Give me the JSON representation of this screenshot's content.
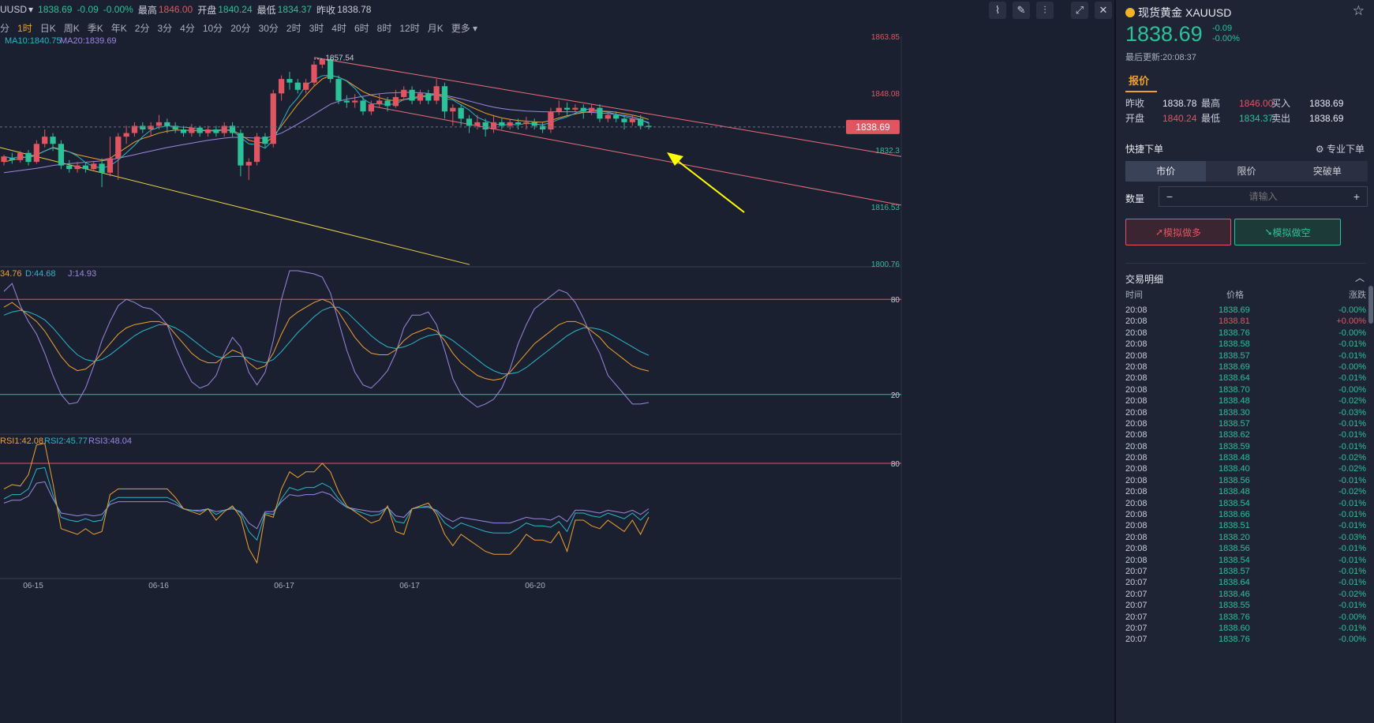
{
  "header": {
    "symbol": "UUSD",
    "price": "1838.69",
    "change": "-0.09",
    "change_pct": "-0.00%",
    "high_label": "最高",
    "high": "1846.00",
    "open_label": "开盘",
    "open": "1840.24",
    "low_label": "最低",
    "low": "1834.37",
    "prev_label": "昨收",
    "prev": "1838.78"
  },
  "periods": [
    "分",
    "1时",
    "日K",
    "周K",
    "季K",
    "年K",
    "2分",
    "3分",
    "4分",
    "10分",
    "20分",
    "30分",
    "2时",
    "3时",
    "4时",
    "6时",
    "8时",
    "12时",
    "月K",
    "更多"
  ],
  "active_period": "1时",
  "tools": [
    "line-tool-icon",
    "pen-tool-icon",
    "indicator-icon",
    "expand-icon",
    "close-icon"
  ],
  "colors": {
    "up": "#2bc29a",
    "down": "#e05561",
    "ma10": "#f0a030",
    "ma20": "#9b87e0",
    "ma5": "#2ab7c9",
    "channel": "#e8707a",
    "trend": "#e8d44d",
    "arrow": "#ffff00"
  },
  "chart_data": [
    {
      "type": "candlestick",
      "legend": [
        "MA10:1840.75",
        "MA20:1839.69"
      ],
      "y_ticks": [
        "1863.85",
        "1848.08",
        "1832.3",
        "1816.53",
        "1800.76"
      ],
      "ylim": [
        1800.76,
        1863.85
      ],
      "x_ticks": [
        "06-15",
        "06-16",
        "06-17",
        "06-17",
        "06-20"
      ],
      "last_price_tag": "1838.69",
      "annotation_high": "1857.54",
      "candles": [
        [
          1829,
          1830.5,
          1828,
          1831
        ],
        [
          1830,
          1829.5,
          1828.5,
          1831.5
        ],
        [
          1829.5,
          1831.5,
          1828.8,
          1832
        ],
        [
          1831.5,
          1829,
          1828,
          1832.3
        ],
        [
          1829,
          1834,
          1828.5,
          1835
        ],
        [
          1834,
          1836,
          1833,
          1838
        ],
        [
          1836,
          1834,
          1832,
          1837
        ],
        [
          1834,
          1828,
          1827,
          1835
        ],
        [
          1828,
          1827,
          1826,
          1829.5
        ],
        [
          1827,
          1828,
          1826,
          1829
        ],
        [
          1828,
          1827,
          1826,
          1829
        ],
        [
          1827,
          1828.5,
          1826.5,
          1829
        ],
        [
          1828.5,
          1826,
          1822,
          1830
        ],
        [
          1826,
          1830,
          1825,
          1836
        ],
        [
          1830,
          1836,
          1824,
          1837
        ],
        [
          1836,
          1837,
          1834,
          1839
        ],
        [
          1837,
          1839,
          1836,
          1840
        ],
        [
          1839,
          1838,
          1837,
          1840
        ],
        [
          1838,
          1839,
          1836,
          1840
        ],
        [
          1839,
          1840,
          1838,
          1842
        ],
        [
          1840,
          1839,
          1837,
          1841
        ],
        [
          1839,
          1838,
          1837,
          1840
        ],
        [
          1838,
          1837,
          1836,
          1839
        ],
        [
          1837,
          1838.5,
          1836,
          1839.5
        ],
        [
          1838.5,
          1837,
          1836,
          1839
        ],
        [
          1837,
          1838,
          1836,
          1839
        ],
        [
          1838,
          1837,
          1836,
          1839
        ],
        [
          1837,
          1839,
          1836,
          1840
        ],
        [
          1839,
          1837,
          1836,
          1840
        ],
        [
          1837,
          1828,
          1825,
          1838
        ],
        [
          1828,
          1829,
          1824,
          1830
        ],
        [
          1829,
          1836,
          1828,
          1837
        ],
        [
          1836,
          1834,
          1833,
          1837
        ],
        [
          1834,
          1848,
          1833,
          1849
        ],
        [
          1848,
          1852,
          1846,
          1853
        ],
        [
          1852,
          1851,
          1849,
          1854
        ],
        [
          1851,
          1849,
          1848,
          1852
        ],
        [
          1849,
          1851,
          1848,
          1852
        ],
        [
          1851,
          1856,
          1850,
          1857
        ],
        [
          1856,
          1857.5,
          1855,
          1857.54
        ],
        [
          1857.5,
          1852,
          1851,
          1858
        ],
        [
          1852,
          1846,
          1845,
          1853
        ],
        [
          1846,
          1845.5,
          1844,
          1847.5
        ],
        [
          1845.5,
          1846,
          1844,
          1847.8
        ],
        [
          1846,
          1843,
          1842,
          1847
        ],
        [
          1843,
          1845,
          1842,
          1846
        ],
        [
          1845,
          1846,
          1844,
          1848
        ],
        [
          1846,
          1844.5,
          1843,
          1847
        ],
        [
          1844.5,
          1847,
          1844,
          1849
        ],
        [
          1847,
          1849,
          1846,
          1850
        ],
        [
          1849,
          1846,
          1845,
          1850
        ],
        [
          1846,
          1848,
          1845,
          1849
        ],
        [
          1848,
          1846,
          1845,
          1849
        ],
        [
          1846,
          1850,
          1845,
          1852
        ],
        [
          1850,
          1843,
          1841,
          1851
        ],
        [
          1843,
          1844,
          1839,
          1845
        ],
        [
          1844,
          1841,
          1839,
          1845
        ],
        [
          1841,
          1839,
          1837,
          1842
        ],
        [
          1839,
          1840,
          1838,
          1842
        ],
        [
          1840,
          1838,
          1836,
          1841
        ],
        [
          1838,
          1840,
          1837,
          1842
        ],
        [
          1840,
          1839,
          1838,
          1841
        ],
        [
          1839,
          1840,
          1838,
          1841
        ],
        [
          1840,
          1839.5,
          1838,
          1841
        ],
        [
          1839.5,
          1840,
          1838,
          1841.5
        ],
        [
          1840,
          1839,
          1838,
          1841
        ],
        [
          1839,
          1838,
          1837,
          1840
        ],
        [
          1838,
          1843,
          1837,
          1844
        ],
        [
          1843,
          1844,
          1842,
          1846
        ],
        [
          1844,
          1843.5,
          1842,
          1845.5
        ],
        [
          1843.5,
          1844,
          1843,
          1845
        ],
        [
          1844,
          1843,
          1841,
          1845
        ],
        [
          1843,
          1844,
          1842,
          1845
        ],
        [
          1844,
          1841,
          1840,
          1845
        ],
        [
          1841,
          1842,
          1840,
          1843
        ],
        [
          1842,
          1841,
          1840,
          1843
        ],
        [
          1841,
          1840,
          1838,
          1842
        ],
        [
          1840,
          1841,
          1839,
          1842
        ],
        [
          1841,
          1839,
          1838,
          1842
        ],
        [
          1839,
          1838.69,
          1838,
          1840
        ]
      ],
      "ma10": [
        1829,
        1829.5,
        1830,
        1830.5,
        1831,
        1832,
        1833,
        1832.5,
        1831.8,
        1831,
        1830.5,
        1830,
        1829.5,
        1830,
        1831.5,
        1833,
        1834.5,
        1835.5,
        1836.2,
        1837,
        1837.5,
        1837.8,
        1837.8,
        1837.7,
        1837.6,
        1837.7,
        1837.8,
        1837.9,
        1837.8,
        1836.5,
        1835,
        1834.5,
        1834.2,
        1836,
        1839,
        1842,
        1845,
        1847.5,
        1850,
        1852,
        1853,
        1852.5,
        1851.5,
        1850,
        1848.5,
        1847.5,
        1846.8,
        1846.2,
        1846,
        1846.3,
        1846.8,
        1847.2,
        1847.5,
        1847.8,
        1847.3,
        1846.5,
        1845.5,
        1844.5,
        1843.5,
        1842.5,
        1841.8,
        1841.2,
        1840.8,
        1840.5,
        1840.3,
        1840.1,
        1840,
        1840.5,
        1841.2,
        1841.8,
        1842.3,
        1842.7,
        1843,
        1843.1,
        1843,
        1842.8,
        1842.4,
        1842,
        1841.5,
        1840.75
      ],
      "ma20": [
        1826,
        1826.3,
        1826.6,
        1826.9,
        1827.2,
        1827.6,
        1828,
        1828.3,
        1828.5,
        1828.7,
        1828.9,
        1829.1,
        1829.3,
        1829.6,
        1830,
        1830.5,
        1831,
        1831.5,
        1832,
        1832.5,
        1833,
        1833.4,
        1833.8,
        1834.2,
        1834.6,
        1835,
        1835.3,
        1835.6,
        1835.8,
        1835.8,
        1835.7,
        1835.6,
        1835.6,
        1836.2,
        1837,
        1838.2,
        1839.5,
        1840.8,
        1842.2,
        1843.6,
        1845,
        1845.8,
        1846.4,
        1846.8,
        1847.2,
        1847.6,
        1847.9,
        1848.1,
        1848.2,
        1848.3,
        1848.3,
        1848.2,
        1848,
        1847.8,
        1847.5,
        1847,
        1846.5,
        1845.9,
        1845.3,
        1844.7,
        1844.2,
        1843.8,
        1843.5,
        1843.3,
        1843.1,
        1843,
        1842.9,
        1842.9,
        1842.9,
        1842.9,
        1842.9,
        1842.8,
        1842.7,
        1842.6,
        1842.4,
        1842.2,
        1841.9,
        1841.5,
        1840.8,
        1839.69
      ]
    },
    {
      "type": "line",
      "name": "KDJ",
      "legend": [
        "34.76",
        "D:44.68",
        "J:14.93"
      ],
      "y_ticks": [
        "80",
        "20"
      ],
      "K": [
        75,
        78,
        74,
        70,
        66,
        60,
        52,
        44,
        38,
        35,
        36,
        40,
        46,
        52,
        58,
        62,
        64,
        65,
        66,
        66,
        64,
        58,
        52,
        46,
        42,
        40,
        40,
        44,
        48,
        46,
        40,
        36,
        38,
        46,
        58,
        68,
        72,
        75,
        78,
        80,
        78,
        72,
        64,
        56,
        50,
        46,
        45,
        45,
        48,
        54,
        58,
        60,
        62,
        60,
        54,
        46,
        40,
        36,
        32,
        30,
        29,
        30,
        34,
        40,
        46,
        52,
        56,
        60,
        64,
        66,
        66,
        64,
        60,
        56,
        50,
        46,
        42,
        38,
        36,
        34.76
      ],
      "D": [
        70,
        72,
        73,
        72,
        70,
        67,
        62,
        56,
        50,
        45,
        42,
        41,
        42,
        45,
        49,
        53,
        57,
        60,
        62,
        64,
        64,
        62,
        59,
        55,
        51,
        47,
        44,
        43,
        44,
        44,
        43,
        41,
        40,
        42,
        47,
        53,
        59,
        64,
        69,
        73,
        75,
        75,
        72,
        67,
        62,
        57,
        53,
        50,
        49,
        50,
        52,
        55,
        57,
        58,
        57,
        54,
        50,
        46,
        42,
        38,
        35,
        33,
        33,
        34,
        37,
        41,
        45,
        49,
        53,
        57,
        60,
        62,
        62,
        61,
        59,
        56,
        53,
        50,
        47,
        44.68
      ]
    },
    {
      "type": "line",
      "name": "RSI",
      "legend": [
        "RSI1:42.08",
        "RSI2:45.77",
        "RSI3:48.04"
      ],
      "y_ticks": [
        "80"
      ],
      "RSI1": [
        62,
        65,
        64,
        72,
        93,
        94,
        66,
        34,
        32,
        30,
        34,
        30,
        32,
        58,
        62,
        62,
        62,
        62,
        62,
        62,
        62,
        56,
        48,
        46,
        44,
        48,
        40,
        46,
        50,
        42,
        20,
        10,
        44,
        42,
        62,
        74,
        70,
        74,
        74,
        80,
        74,
        60,
        50,
        46,
        42,
        38,
        40,
        50,
        32,
        30,
        48,
        50,
        52,
        44,
        30,
        22,
        30,
        26,
        22,
        18,
        16,
        16,
        16,
        22,
        30,
        26,
        26,
        24,
        32,
        18,
        40,
        40,
        36,
        34,
        40,
        36,
        32,
        40,
        30,
        42.08
      ],
      "RSI2": [
        55,
        58,
        58,
        62,
        76,
        77,
        58,
        42,
        40,
        39,
        41,
        39,
        40,
        53,
        56,
        56,
        56,
        56,
        56,
        56,
        56,
        53,
        48,
        47,
        46,
        48,
        44,
        47,
        49,
        45,
        32,
        26,
        45,
        44,
        55,
        63,
        61,
        63,
        63,
        66,
        63,
        55,
        49,
        47,
        45,
        43,
        44,
        49,
        39,
        38,
        48,
        49,
        50,
        46,
        38,
        34,
        38,
        36,
        34,
        32,
        31,
        31,
        31,
        34,
        38,
        36,
        36,
        35,
        39,
        32,
        45,
        45,
        43,
        42,
        45,
        43,
        41,
        45,
        40,
        45.77
      ],
      "RSI3": [
        52,
        54,
        54,
        57,
        66,
        67,
        55,
        45,
        44,
        43,
        44,
        43,
        44,
        51,
        53,
        53,
        53,
        53,
        53,
        53,
        53,
        51,
        48,
        47,
        47,
        48,
        46,
        47,
        48,
        46,
        38,
        34,
        46,
        46,
        53,
        58,
        57,
        58,
        58,
        60,
        58,
        53,
        49,
        48,
        47,
        46,
        46,
        49,
        43,
        42,
        48,
        49,
        49,
        47,
        42,
        39,
        42,
        41,
        40,
        39,
        38,
        38,
        38,
        40,
        42,
        41,
        41,
        40,
        43,
        39,
        47,
        47,
        46,
        45,
        47,
        46,
        45,
        47,
        44,
        48.04
      ]
    }
  ],
  "sidebar": {
    "title": "现货黄金",
    "code": "XAUUSD",
    "price": "1838.69",
    "change": "-0.09",
    "change_pct": "-0.00%",
    "updated": "最后更新:20:08:37",
    "tab": "报价",
    "prev_label": "昨收",
    "prev": "1838.78",
    "high_label": "最高",
    "high": "1846.00",
    "bid_label": "买入",
    "bid": "1838.69",
    "open_label": "开盘",
    "open": "1840.24",
    "low_label": "最低",
    "low": "1834.37",
    "ask_label": "卖出",
    "ask": "1838.69",
    "fast_order": "快捷下单",
    "pro_order": "专业下单",
    "order_tabs": [
      "市价",
      "限价",
      "突破单"
    ],
    "qty_label": "数量",
    "qty_placeholder": "请输入",
    "long_btn": "模拟做多",
    "short_btn": "模拟做空",
    "trades_title": "交易明细",
    "cols": [
      "时间",
      "价格",
      "涨跌"
    ],
    "trades": [
      [
        "20:08",
        "1838.69",
        "-0.00%",
        "up"
      ],
      [
        "20:08",
        "1838.81",
        "+0.00%",
        "down"
      ],
      [
        "20:08",
        "1838.76",
        "-0.00%",
        "up"
      ],
      [
        "20:08",
        "1838.58",
        "-0.01%",
        "up"
      ],
      [
        "20:08",
        "1838.57",
        "-0.01%",
        "up"
      ],
      [
        "20:08",
        "1838.69",
        "-0.00%",
        "up"
      ],
      [
        "20:08",
        "1838.64",
        "-0.01%",
        "up"
      ],
      [
        "20:08",
        "1838.70",
        "-0.00%",
        "up"
      ],
      [
        "20:08",
        "1838.48",
        "-0.02%",
        "up"
      ],
      [
        "20:08",
        "1838.30",
        "-0.03%",
        "up"
      ],
      [
        "20:08",
        "1838.57",
        "-0.01%",
        "up"
      ],
      [
        "20:08",
        "1838.62",
        "-0.01%",
        "up"
      ],
      [
        "20:08",
        "1838.59",
        "-0.01%",
        "up"
      ],
      [
        "20:08",
        "1838.48",
        "-0.02%",
        "up"
      ],
      [
        "20:08",
        "1838.40",
        "-0.02%",
        "up"
      ],
      [
        "20:08",
        "1838.56",
        "-0.01%",
        "up"
      ],
      [
        "20:08",
        "1838.48",
        "-0.02%",
        "up"
      ],
      [
        "20:08",
        "1838.54",
        "-0.01%",
        "up"
      ],
      [
        "20:08",
        "1838.66",
        "-0.01%",
        "up"
      ],
      [
        "20:08",
        "1838.51",
        "-0.01%",
        "up"
      ],
      [
        "20:08",
        "1838.20",
        "-0.03%",
        "up"
      ],
      [
        "20:08",
        "1838.56",
        "-0.01%",
        "up"
      ],
      [
        "20:08",
        "1838.54",
        "-0.01%",
        "up"
      ],
      [
        "20:07",
        "1838.57",
        "-0.01%",
        "up"
      ],
      [
        "20:07",
        "1838.64",
        "-0.01%",
        "up"
      ],
      [
        "20:07",
        "1838.46",
        "-0.02%",
        "up"
      ],
      [
        "20:07",
        "1838.55",
        "-0.01%",
        "up"
      ],
      [
        "20:07",
        "1838.76",
        "-0.00%",
        "up"
      ],
      [
        "20:07",
        "1838.60",
        "-0.01%",
        "up"
      ],
      [
        "20:07",
        "1838.76",
        "-0.00%",
        "up"
      ]
    ]
  }
}
